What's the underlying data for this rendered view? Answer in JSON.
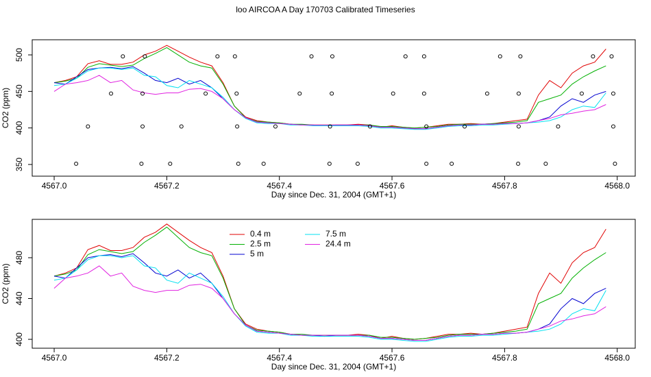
{
  "chart_data": [
    {
      "type": "line",
      "title": "loo AIRCOA A  Day 170703  Calibrated Timeseries",
      "xlabel": "Day since Dec. 31, 2004 (GMT+1)",
      "ylabel": "CO2 (ppm)",
      "x": [
        4567.0,
        4567.02,
        4567.04,
        4567.06,
        4567.08,
        4567.1,
        4567.12,
        4567.14,
        4567.16,
        4567.18,
        4567.2,
        4567.22,
        4567.24,
        4567.26,
        4567.28,
        4567.3,
        4567.32,
        4567.34,
        4567.36,
        4567.38,
        4567.4,
        4567.42,
        4567.44,
        4567.46,
        4567.48,
        4567.5,
        4567.52,
        4567.54,
        4567.56,
        4567.58,
        4567.6,
        4567.62,
        4567.64,
        4567.66,
        4567.68,
        4567.7,
        4567.72,
        4567.74,
        4567.76,
        4567.78,
        4567.8,
        4567.82,
        4567.84,
        4567.86,
        4567.88,
        4567.9,
        4567.92,
        4567.94,
        4567.96,
        4567.98
      ],
      "series": [
        {
          "color": "#e00000",
          "values": [
            462,
            465,
            470,
            488,
            492,
            487,
            487,
            490,
            500,
            505,
            513,
            505,
            497,
            490,
            485,
            462,
            430,
            415,
            410,
            408,
            407,
            405,
            404,
            404,
            404,
            404,
            404,
            405,
            404,
            401,
            403,
            401,
            400,
            401,
            403,
            405,
            405,
            406,
            405,
            406,
            408,
            410,
            412,
            445,
            465,
            455,
            475,
            485,
            490,
            508
          ]
        },
        {
          "color": "#00b000",
          "values": [
            462,
            464,
            468,
            483,
            488,
            486,
            484,
            486,
            495,
            502,
            510,
            500,
            490,
            485,
            482,
            460,
            430,
            414,
            409,
            408,
            407,
            405,
            405,
            404,
            404,
            404,
            404,
            404,
            404,
            402,
            402,
            401,
            400,
            401,
            402,
            404,
            405,
            405,
            405,
            406,
            407,
            408,
            410,
            435,
            440,
            445,
            460,
            470,
            478,
            485
          ]
        },
        {
          "color": "#0000d0",
          "values": [
            462,
            460,
            470,
            480,
            482,
            483,
            481,
            484,
            475,
            465,
            462,
            468,
            460,
            465,
            455,
            440,
            425,
            414,
            408,
            407,
            406,
            405,
            404,
            404,
            403,
            404,
            404,
            404,
            403,
            401,
            401,
            400,
            399,
            399,
            401,
            403,
            404,
            404,
            405,
            405,
            406,
            406,
            407,
            410,
            415,
            430,
            440,
            435,
            445,
            450
          ]
        },
        {
          "color": "#00e0f0",
          "values": [
            458,
            460,
            468,
            478,
            482,
            482,
            480,
            482,
            472,
            470,
            458,
            455,
            465,
            460,
            455,
            442,
            425,
            413,
            407,
            406,
            406,
            404,
            404,
            403,
            403,
            403,
            403,
            403,
            402,
            400,
            400,
            399,
            398,
            398,
            400,
            402,
            403,
            403,
            404,
            404,
            405,
            406,
            407,
            408,
            410,
            415,
            425,
            430,
            428,
            448
          ]
        },
        {
          "color": "#e020e0",
          "values": [
            450,
            460,
            462,
            465,
            472,
            462,
            465,
            452,
            448,
            446,
            448,
            448,
            453,
            454,
            450,
            440,
            425,
            414,
            408,
            407,
            406,
            405,
            404,
            404,
            404,
            404,
            404,
            404,
            403,
            401,
            401,
            400,
            399,
            399,
            401,
            403,
            404,
            404,
            405,
            405,
            406,
            406,
            407,
            410,
            413,
            418,
            420,
            423,
            425,
            432
          ]
        }
      ],
      "points": {
        "x": [
          4567.122,
          4567.161,
          4567.29,
          4567.321,
          4567.457,
          4567.494,
          4567.624,
          4567.657,
          4567.792,
          4567.828,
          4567.957,
          4567.99,
          4567.101,
          4567.157,
          4567.269,
          4567.324,
          4567.436,
          4567.493,
          4567.602,
          4567.657,
          4567.769,
          4567.825,
          4567.937,
          4567.993,
          4567.06,
          4567.157,
          4567.226,
          4567.325,
          4567.393,
          4567.49,
          4567.561,
          4567.661,
          4567.729,
          4567.825,
          4567.895,
          4567.993,
          4567.039,
          4567.155,
          4567.206,
          4567.327,
          4567.372,
          4567.489,
          4567.539,
          4567.661,
          4567.706,
          4567.824,
          4567.873,
          4567.996
        ],
        "y": [
          498,
          498,
          498,
          498,
          498,
          498,
          498,
          498,
          498,
          498,
          498,
          498,
          447,
          447,
          447,
          447,
          447,
          447,
          447,
          447,
          447,
          447,
          447,
          447,
          402,
          402,
          402,
          402,
          402,
          402,
          402,
          402,
          402,
          402,
          402,
          402,
          351,
          351,
          351,
          351,
          351,
          351,
          351,
          351,
          351,
          351,
          351,
          351
        ]
      },
      "xlim": [
        4566.961,
        4568.032
      ],
      "ylim": [
        334,
        520.7
      ],
      "xticks": [
        {
          "value": 4567.0,
          "label": "4567.0"
        },
        {
          "value": 4567.2,
          "label": "4567.2"
        },
        {
          "value": 4567.4,
          "label": "4567.4"
        },
        {
          "value": 4567.6,
          "label": "4567.6"
        },
        {
          "value": 4567.8,
          "label": "4567.8"
        },
        {
          "value": 4568.0,
          "label": "4568.0"
        }
      ],
      "yticks": [
        350,
        400,
        450,
        500
      ]
    },
    {
      "type": "line",
      "xlabel": "Day since Dec. 31, 2004 (GMT+1)",
      "ylabel": "CO2 (ppm)",
      "x": [
        4567.0,
        4567.02,
        4567.04,
        4567.06,
        4567.08,
        4567.1,
        4567.12,
        4567.14,
        4567.16,
        4567.18,
        4567.2,
        4567.22,
        4567.24,
        4567.26,
        4567.28,
        4567.3,
        4567.32,
        4567.34,
        4567.36,
        4567.38,
        4567.4,
        4567.42,
        4567.44,
        4567.46,
        4567.48,
        4567.5,
        4567.52,
        4567.54,
        4567.56,
        4567.58,
        4567.6,
        4567.62,
        4567.64,
        4567.66,
        4567.68,
        4567.7,
        4567.72,
        4567.74,
        4567.76,
        4567.78,
        4567.8,
        4567.82,
        4567.84,
        4567.86,
        4567.88,
        4567.9,
        4567.92,
        4567.94,
        4567.96,
        4567.98
      ],
      "series": [
        {
          "name": "0.4 m",
          "color": "#e00000",
          "values": [
            462,
            465,
            470,
            488,
            492,
            487,
            487,
            490,
            500,
            505,
            513,
            505,
            497,
            490,
            485,
            462,
            430,
            415,
            410,
            408,
            407,
            405,
            404,
            404,
            404,
            404,
            404,
            405,
            404,
            401,
            403,
            401,
            400,
            401,
            403,
            405,
            405,
            406,
            405,
            406,
            408,
            410,
            412,
            445,
            465,
            455,
            475,
            485,
            490,
            508
          ]
        },
        {
          "name": "2.5 m",
          "color": "#00b000",
          "values": [
            462,
            464,
            468,
            483,
            488,
            486,
            484,
            486,
            495,
            502,
            510,
            500,
            490,
            485,
            482,
            460,
            430,
            414,
            409,
            408,
            407,
            405,
            405,
            404,
            404,
            404,
            404,
            404,
            404,
            402,
            402,
            401,
            400,
            401,
            402,
            404,
            405,
            405,
            405,
            406,
            407,
            408,
            410,
            435,
            440,
            445,
            460,
            470,
            478,
            485
          ]
        },
        {
          "name": "5 m",
          "color": "#0000d0",
          "values": [
            462,
            460,
            470,
            480,
            482,
            483,
            481,
            484,
            475,
            465,
            462,
            468,
            460,
            465,
            455,
            440,
            425,
            414,
            408,
            407,
            406,
            405,
            404,
            404,
            403,
            404,
            404,
            404,
            403,
            401,
            401,
            400,
            399,
            399,
            401,
            403,
            404,
            404,
            405,
            405,
            406,
            406,
            407,
            410,
            415,
            430,
            440,
            435,
            445,
            450
          ]
        },
        {
          "name": "7.5 m",
          "color": "#00e0f0",
          "values": [
            458,
            460,
            468,
            478,
            482,
            482,
            480,
            482,
            472,
            470,
            458,
            455,
            465,
            460,
            455,
            442,
            425,
            413,
            407,
            406,
            406,
            404,
            404,
            403,
            403,
            403,
            403,
            403,
            402,
            400,
            400,
            399,
            398,
            398,
            400,
            402,
            403,
            403,
            404,
            404,
            405,
            406,
            407,
            408,
            410,
            415,
            425,
            430,
            428,
            448
          ]
        },
        {
          "name": "24.4 m",
          "color": "#e020e0",
          "values": [
            450,
            460,
            462,
            465,
            472,
            462,
            465,
            452,
            448,
            446,
            448,
            448,
            453,
            454,
            450,
            440,
            425,
            414,
            408,
            407,
            406,
            405,
            404,
            404,
            404,
            404,
            404,
            404,
            403,
            401,
            401,
            400,
            399,
            399,
            401,
            403,
            404,
            404,
            405,
            405,
            406,
            406,
            407,
            410,
            413,
            418,
            420,
            423,
            425,
            432
          ]
        }
      ],
      "xlim": [
        4566.961,
        4568.032
      ],
      "ylim": [
        391.3,
        517.6
      ],
      "xticks": [
        {
          "value": 4567.0,
          "label": "4567.0"
        },
        {
          "value": 4567.2,
          "label": "4567.2"
        },
        {
          "value": 4567.4,
          "label": "4567.4"
        },
        {
          "value": 4567.6,
          "label": "4567.6"
        },
        {
          "value": 4567.8,
          "label": "4567.8"
        },
        {
          "value": 4568.0,
          "label": "4568.0"
        }
      ],
      "yticks": [
        400,
        440,
        480
      ],
      "legend": "top"
    }
  ]
}
